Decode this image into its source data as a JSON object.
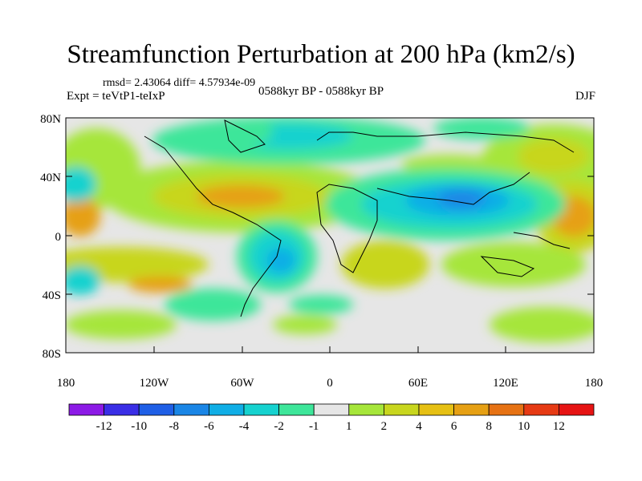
{
  "title": "Streamfunction Perturbation at 200 hPa (km2/s)",
  "stats": "rmsd= 2.43064 diff= 4.57934e-09",
  "experiment": "Expt = teVtP1-teIxP",
  "period": "0588kyr BP - 0588kyr BP",
  "season": "DJF",
  "axes": {
    "lat_ticks": [
      "80N",
      "40N",
      "0",
      "40S",
      "80S"
    ],
    "lon_ticks": [
      "180",
      "120W",
      "60W",
      "0",
      "60E",
      "120E",
      "180"
    ]
  },
  "colorbar": {
    "labels": [
      "-12",
      "-10",
      "-8",
      "-6",
      "-4",
      "-2",
      "-1",
      "1",
      "2",
      "4",
      "6",
      "8",
      "10",
      "12"
    ],
    "colors": [
      "#8c1ae6",
      "#3a2ee6",
      "#1f5fe6",
      "#1a86e6",
      "#10aee6",
      "#16d2cf",
      "#3ee69a",
      "#e6e6e6",
      "#a6e63a",
      "#c8d61e",
      "#e6c014",
      "#e6a014",
      "#e67214",
      "#e63a14",
      "#e61414"
    ]
  }
}
